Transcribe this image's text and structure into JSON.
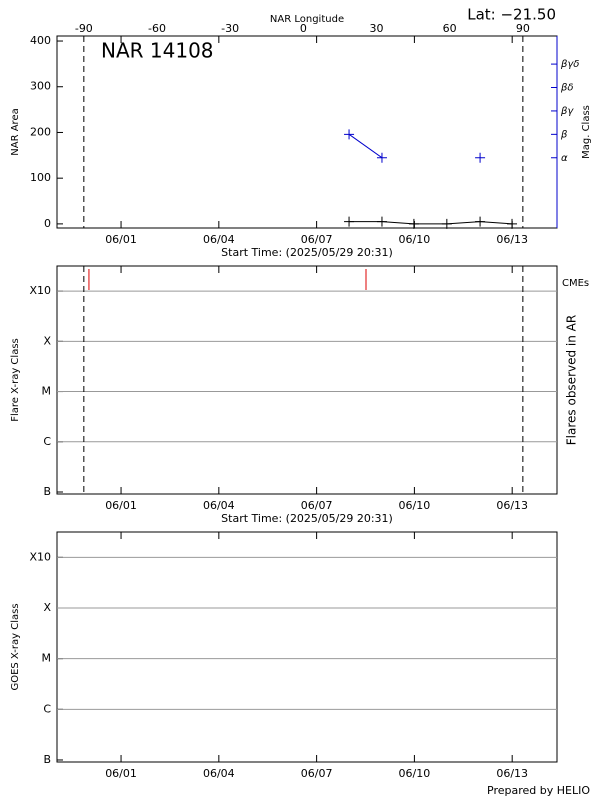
{
  "footer": "Prepared by HELIO",
  "chart_data": [
    {
      "type": "line",
      "title": "NAR 14108",
      "lat_label": "Lat: −21.50",
      "x2label": "NAR Longitude",
      "ylabel": "NAR Area",
      "y2label": "Mag. Class",
      "xlabel": "Start Time: (2025/05/29 20:31)",
      "xlim": [
        0.18,
        15.52
      ],
      "xticks": [
        {
          "value": 2.145,
          "label": "06/01"
        },
        {
          "value": 5.145,
          "label": "06/04"
        },
        {
          "value": 8.145,
          "label": "06/07"
        },
        {
          "value": 11.145,
          "label": "06/10"
        },
        {
          "value": 14.145,
          "label": "06/13"
        }
      ],
      "x2lim": [
        -101,
        104
      ],
      "x2ticks": [
        -90,
        -60,
        -30,
        0,
        30,
        60,
        90
      ],
      "ylim": [
        -9,
        411
      ],
      "yticks": [
        0,
        100,
        200,
        300,
        400
      ],
      "y2lim": [
        0,
        8.2
      ],
      "y2ticks": [
        {
          "value": 3,
          "label": "α"
        },
        {
          "value": 4,
          "label": "β"
        },
        {
          "value": 5,
          "label": "βγ"
        },
        {
          "value": 6,
          "label": "βδ"
        },
        {
          "value": 7,
          "label": "βγδ"
        }
      ],
      "x": [
        9.14,
        10.15,
        11.13,
        12.14,
        13.16,
        14.14
      ],
      "series": [
        {
          "name": "NAR Area",
          "color": "#000000",
          "values": [
            5,
            5,
            0,
            0,
            5,
            0
          ]
        },
        {
          "name": "Mag. Class",
          "color": "#0000cc",
          "axis": "y2",
          "values": [
            4,
            3,
            null,
            null,
            3,
            null
          ]
        }
      ]
    },
    {
      "type": "line",
      "ylabel": "Flare X-ray Class",
      "y2label": "Flares observed in AR",
      "xlabel": "Start Time: (2025/05/29 20:31)",
      "xlim": [
        0.18,
        15.52
      ],
      "xticks": [
        {
          "value": 2.145,
          "label": "06/01"
        },
        {
          "value": 5.145,
          "label": "06/04"
        },
        {
          "value": 8.145,
          "label": "06/07"
        },
        {
          "value": 11.145,
          "label": "06/10"
        },
        {
          "value": 14.145,
          "label": "06/13"
        }
      ],
      "ylim": [
        -7.04,
        -2.5
      ],
      "yticks": [
        {
          "value": -7,
          "label": "B"
        },
        {
          "value": -6,
          "label": "C"
        },
        {
          "value": -5,
          "label": "M"
        },
        {
          "value": -4,
          "label": "X"
        },
        {
          "value": -3,
          "label": "X10"
        }
      ],
      "grid": true,
      "cmes": {
        "name": "CMEs",
        "color": "#dd0000",
        "x": [
          1.16,
          9.66
        ]
      }
    },
    {
      "type": "line",
      "ylabel": "GOES X-ray Class",
      "xlim": [
        0.18,
        15.52
      ],
      "xticks": [
        {
          "value": 2.145,
          "label": "06/01"
        },
        {
          "value": 5.145,
          "label": "06/04"
        },
        {
          "value": 8.145,
          "label": "06/07"
        },
        {
          "value": 11.145,
          "label": "06/10"
        },
        {
          "value": 14.145,
          "label": "06/13"
        }
      ],
      "ylim": [
        -7.04,
        -2.5
      ],
      "yticks": [
        {
          "value": -7,
          "label": "B"
        },
        {
          "value": -6,
          "label": "C"
        },
        {
          "value": -5,
          "label": "M"
        },
        {
          "value": -4,
          "label": "X"
        },
        {
          "value": -3,
          "label": "X10"
        }
      ],
      "grid": true
    }
  ]
}
